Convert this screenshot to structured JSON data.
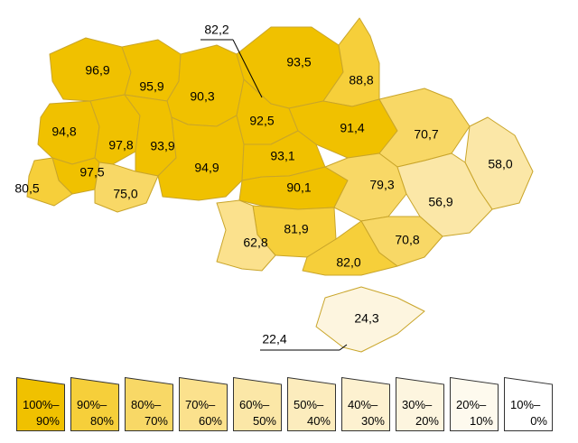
{
  "map": {
    "colors": {
      "c90": "#f0c100",
      "c80": "#f6cf3a",
      "c70": "#f8d866",
      "c60": "#fbe18d",
      "c50": "#fbe7a7",
      "c40": "#fcecbd",
      "c20": "#fdf5df"
    },
    "regions": [
      {
        "label": "96,9",
        "class": "c90"
      },
      {
        "label": "95,9",
        "class": "c90"
      },
      {
        "label": "90,3",
        "class": "c90"
      },
      {
        "label": "93,5",
        "class": "c90"
      },
      {
        "label": "88,8",
        "class": "c80"
      },
      {
        "label": "94,8",
        "class": "c90"
      },
      {
        "label": "97,8",
        "class": "c90"
      },
      {
        "label": "93,9",
        "class": "c90"
      },
      {
        "label": "92,5",
        "class": "c90"
      },
      {
        "label": "91,4",
        "class": "c90"
      },
      {
        "label": "70,7",
        "class": "c70"
      },
      {
        "label": "97,5",
        "class": "c90"
      },
      {
        "label": "80,5",
        "class": "c80"
      },
      {
        "label": "75,0",
        "class": "c70"
      },
      {
        "label": "94,9",
        "class": "c90"
      },
      {
        "label": "93,1",
        "class": "c90"
      },
      {
        "label": "58,0",
        "class": "c50"
      },
      {
        "label": "90,1",
        "class": "c90"
      },
      {
        "label": "79,3",
        "class": "c70"
      },
      {
        "label": "56,9",
        "class": "c50"
      },
      {
        "label": "81,9",
        "class": "c80"
      },
      {
        "label": "62,8",
        "class": "c60"
      },
      {
        "label": "70,8",
        "class": "c70"
      },
      {
        "label": "82,0",
        "class": "c80"
      },
      {
        "label": "24,3",
        "class": "c20"
      }
    ],
    "callouts": [
      {
        "label": "82,2"
      },
      {
        "label": "22,4"
      }
    ]
  },
  "legend": [
    {
      "top": "100%–",
      "bottom": "90%",
      "color": "#f0c100"
    },
    {
      "top": "90%–",
      "bottom": "80%",
      "color": "#f6cf3a"
    },
    {
      "top": "80%–",
      "bottom": "70%",
      "color": "#f8d866"
    },
    {
      "top": "70%–",
      "bottom": "60%",
      "color": "#fbe18d"
    },
    {
      "top": "60%–",
      "bottom": "50%",
      "color": "#fbe7a7"
    },
    {
      "top": "50%–",
      "bottom": "40%",
      "color": "#fcecbd"
    },
    {
      "top": "40%–",
      "bottom": "30%",
      "color": "#fdf1d0"
    },
    {
      "top": "30%–",
      "bottom": "20%",
      "color": "#fdf5df"
    },
    {
      "top": "20%–",
      "bottom": "10%",
      "color": "#fefaee"
    },
    {
      "top": "10%–",
      "bottom": "0%",
      "color": "#ffffff"
    }
  ]
}
